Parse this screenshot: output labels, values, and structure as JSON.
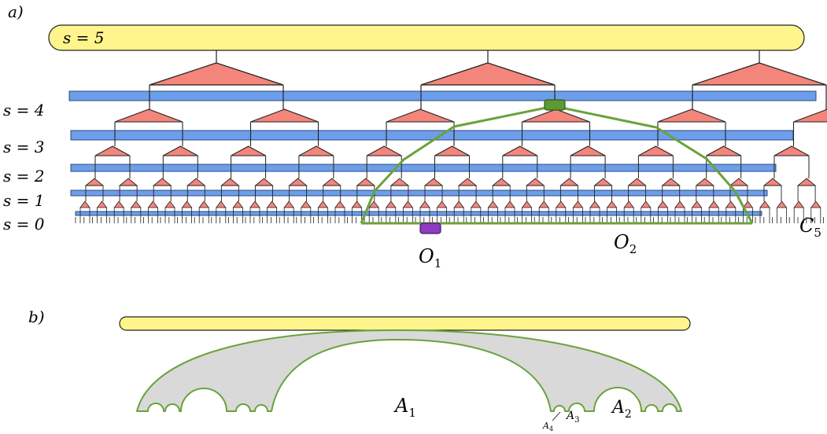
{
  "panel_a": {
    "label": "a)",
    "top_bar_label": "s = 5",
    "scale_labels": [
      "s = 4",
      "s = 3",
      "s = 2",
      "s = 1",
      "s = 0"
    ],
    "operator_labels": {
      "o1": "O",
      "o1_sub": "1",
      "o2": "O",
      "o2_sub": "2"
    },
    "causal_cone_label": "C",
    "causal_cone_sub": "5",
    "colors": {
      "top_bar": "#fff58c",
      "disentangler": "#6d9eeb",
      "isometry": "#f4857b",
      "cone": "#6aa23c",
      "operator_o1": "#8e3bbf",
      "operator_o2": "#5b9a32"
    }
  },
  "panel_b": {
    "label": "b)",
    "region_labels": {
      "a1": "A",
      "a1_sub": "1",
      "a2": "A",
      "a2_sub": "2",
      "a3": "A",
      "a3_sub": "3",
      "a4": "A",
      "a4_sub": "4"
    },
    "colors": {
      "top_bar": "#fff58c",
      "region_fill": "#d9d9d9",
      "region_stroke": "#6aa23c"
    }
  }
}
